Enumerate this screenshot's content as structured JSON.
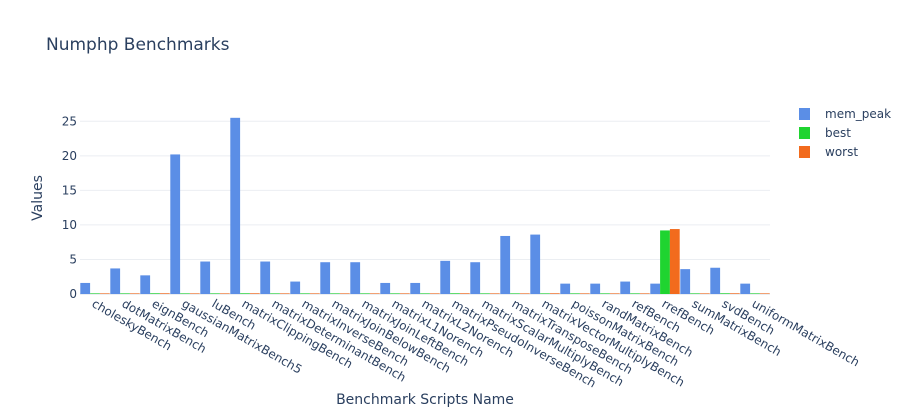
{
  "chart_data": {
    "type": "bar",
    "title": "Numphp Benchmarks",
    "xlabel": "Benchmark Scripts Name",
    "ylabel": "Values",
    "ylim": [
      0,
      27.5
    ],
    "yticks": [
      0,
      5,
      10,
      15,
      20,
      25
    ],
    "grid": true,
    "legend_position": "top-right",
    "categories": [
      "choleskyBench",
      "dotMatrixBench",
      "eignBench",
      "gaussianMatrixBench5",
      "luBench",
      "matrixClippingBench",
      "matrixDeterminantBench",
      "matrixInverseBench",
      "matrixJoinBelowBench",
      "matrixJoinLeftBench",
      "matrixL1Norench",
      "matrixL2Norench",
      "matrixPseudoInverseBench",
      "matrixScalarMultiplyBench",
      "matrixTransposeBench",
      "matrixVectorMultiplyBench",
      "poissonMatrixBench",
      "randMatrixBench",
      "refBench",
      "rrefBench",
      "sumMatrixBench",
      "svdBench",
      "uniformMatrixBench"
    ],
    "series": [
      {
        "name": "mem_peak",
        "color": "#5b8ee6",
        "values": [
          1.6,
          3.7,
          2.7,
          20.2,
          4.7,
          25.5,
          4.7,
          1.8,
          4.6,
          4.6,
          1.6,
          1.6,
          4.8,
          4.6,
          8.4,
          8.6,
          1.5,
          1.5,
          1.8,
          1.5,
          3.6,
          3.8,
          1.5
        ]
      },
      {
        "name": "best",
        "color": "#1fd430",
        "values": [
          0.02,
          0.02,
          0.1,
          0.02,
          0.02,
          0.1,
          0.02,
          0.02,
          0.02,
          0.02,
          0.02,
          0.02,
          0.1,
          0.02,
          0.02,
          0.02,
          0.02,
          0.02,
          0.02,
          9.2,
          0.02,
          0.1,
          0.02
        ]
      },
      {
        "name": "worst",
        "color": "#f26b1d",
        "values": [
          0.02,
          0.02,
          0.1,
          0.02,
          0.02,
          0.1,
          0.02,
          0.02,
          0.02,
          0.02,
          0.02,
          0.02,
          0.1,
          0.02,
          0.02,
          0.1,
          0.02,
          0.02,
          0.02,
          9.4,
          0.02,
          0.1,
          0.02
        ]
      }
    ]
  }
}
